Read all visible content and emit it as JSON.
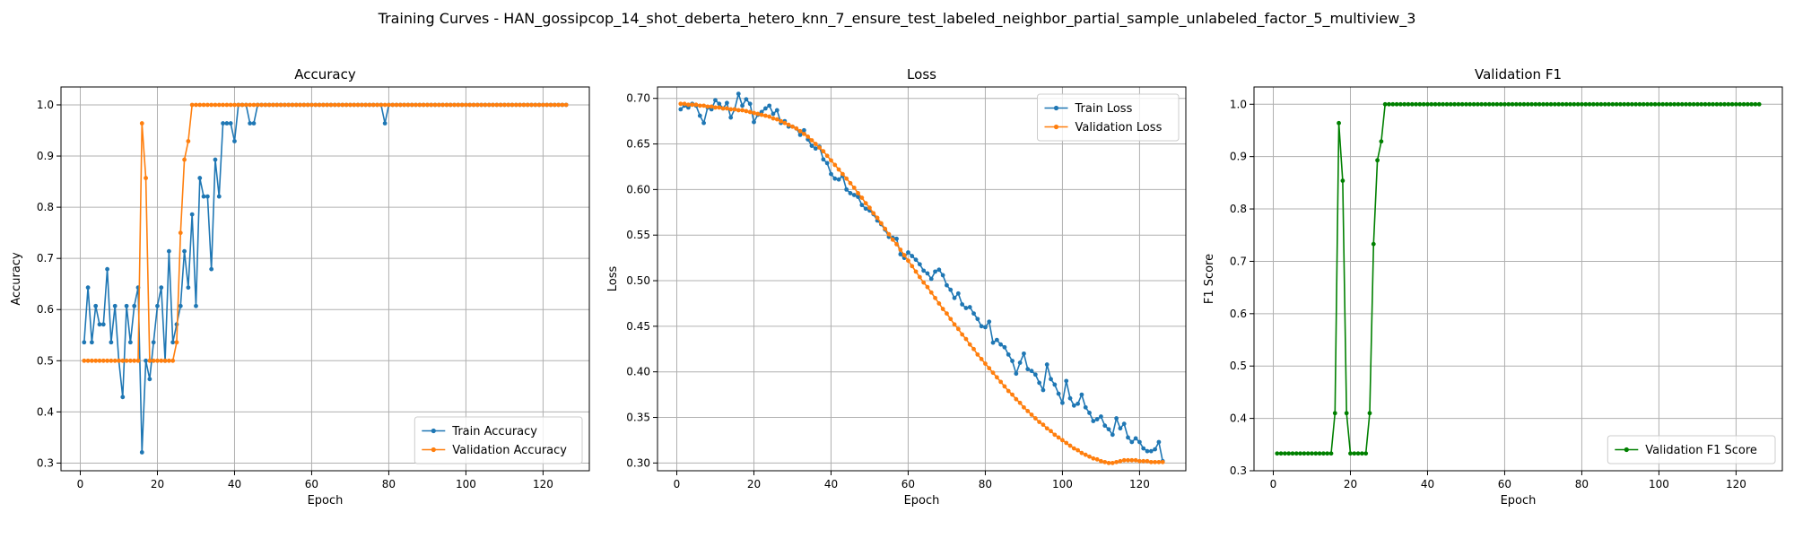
{
  "figure": {
    "suptitle": "Training Curves - HAN_gossipcop_14_shot_deberta_hetero_knn_7_ensure_test_labeled_neighbor_partial_sample_unlabeled_factor_5_multiview_3"
  },
  "chart_data": [
    {
      "type": "line",
      "title": "Accuracy",
      "xlabel": "Epoch",
      "ylabel": "Accuracy",
      "xlim": [
        -5,
        132
      ],
      "ylim": [
        0.285,
        1.035
      ],
      "xticks": [
        0,
        20,
        40,
        60,
        80,
        100,
        120
      ],
      "yticks": [
        0.3,
        0.4,
        0.5,
        0.6,
        0.7,
        0.8,
        0.9,
        1.0
      ],
      "ytick_labels": [
        "0.3",
        "0.4",
        "0.5",
        "0.6",
        "0.7",
        "0.8",
        "0.9",
        "1.0"
      ],
      "grid": true,
      "legend_position": "lower-right",
      "series": [
        {
          "name": "Train Accuracy",
          "color": "#1f77b4",
          "x_start": 1,
          "values": [
            0.536,
            0.643,
            0.536,
            0.607,
            0.571,
            0.571,
            0.679,
            0.536,
            0.607,
            0.5,
            0.429,
            0.607,
            0.536,
            0.607,
            0.643,
            0.321,
            0.5,
            0.464,
            0.536,
            0.607,
            0.643,
            0.5,
            0.714,
            0.536,
            0.571,
            0.607,
            0.714,
            0.643,
            0.786,
            0.607,
            0.857,
            0.821,
            0.821,
            0.679,
            0.893,
            0.821,
            0.964,
            0.964,
            0.964,
            0.929,
            1.0,
            1.0,
            1.0,
            0.964,
            0.964,
            1.0,
            1.0,
            1.0,
            1.0,
            1.0,
            1.0,
            1.0,
            1.0,
            1.0,
            1.0,
            1.0,
            1.0,
            1.0,
            1.0,
            1.0,
            1.0,
            1.0,
            1.0,
            1.0,
            1.0,
            1.0,
            1.0,
            1.0,
            1.0,
            1.0,
            1.0,
            1.0,
            1.0,
            1.0,
            1.0,
            1.0,
            1.0,
            1.0,
            0.964,
            1.0,
            1.0,
            1.0,
            1.0,
            1.0,
            1.0,
            1.0,
            1.0,
            1.0,
            1.0,
            1.0,
            1.0,
            1.0,
            1.0,
            1.0,
            1.0,
            1.0,
            1.0,
            1.0,
            1.0,
            1.0,
            1.0,
            1.0,
            1.0,
            1.0,
            1.0,
            1.0,
            1.0,
            1.0,
            1.0,
            1.0,
            1.0,
            1.0,
            1.0,
            1.0,
            1.0,
            1.0,
            1.0,
            1.0,
            1.0,
            1.0,
            1.0,
            1.0,
            1.0,
            1.0,
            1.0,
            1.0
          ]
        },
        {
          "name": "Validation Accuracy",
          "color": "#ff7f0e",
          "x_start": 1,
          "values": [
            0.5,
            0.5,
            0.5,
            0.5,
            0.5,
            0.5,
            0.5,
            0.5,
            0.5,
            0.5,
            0.5,
            0.5,
            0.5,
            0.5,
            0.5,
            0.964,
            0.857,
            0.5,
            0.5,
            0.5,
            0.5,
            0.5,
            0.5,
            0.5,
            0.536,
            0.75,
            0.893,
            0.929,
            1.0,
            1.0,
            1.0,
            1.0,
            1.0,
            1.0,
            1.0,
            1.0,
            1.0,
            1.0,
            1.0,
            1.0,
            1.0,
            1.0,
            1.0,
            1.0,
            1.0,
            1.0,
            1.0,
            1.0,
            1.0,
            1.0,
            1.0,
            1.0,
            1.0,
            1.0,
            1.0,
            1.0,
            1.0,
            1.0,
            1.0,
            1.0,
            1.0,
            1.0,
            1.0,
            1.0,
            1.0,
            1.0,
            1.0,
            1.0,
            1.0,
            1.0,
            1.0,
            1.0,
            1.0,
            1.0,
            1.0,
            1.0,
            1.0,
            1.0,
            1.0,
            1.0,
            1.0,
            1.0,
            1.0,
            1.0,
            1.0,
            1.0,
            1.0,
            1.0,
            1.0,
            1.0,
            1.0,
            1.0,
            1.0,
            1.0,
            1.0,
            1.0,
            1.0,
            1.0,
            1.0,
            1.0,
            1.0,
            1.0,
            1.0,
            1.0,
            1.0,
            1.0,
            1.0,
            1.0,
            1.0,
            1.0,
            1.0,
            1.0,
            1.0,
            1.0,
            1.0,
            1.0,
            1.0,
            1.0,
            1.0,
            1.0,
            1.0,
            1.0,
            1.0,
            1.0,
            1.0,
            1.0
          ]
        }
      ]
    },
    {
      "type": "line",
      "title": "Loss",
      "xlabel": "Epoch",
      "ylabel": "Loss",
      "xlim": [
        -5,
        132
      ],
      "ylim": [
        0.2915,
        0.7125
      ],
      "xticks": [
        0,
        20,
        40,
        60,
        80,
        100,
        120
      ],
      "yticks": [
        0.3,
        0.35,
        0.4,
        0.45,
        0.5,
        0.55,
        0.6,
        0.65,
        0.7
      ],
      "ytick_labels": [
        "0.30",
        "0.35",
        "0.40",
        "0.45",
        "0.50",
        "0.55",
        "0.60",
        "0.65",
        "0.70"
      ],
      "grid": true,
      "legend_position": "upper-right",
      "series": [
        {
          "name": "Train Loss",
          "color": "#1f77b4",
          "x_start": 1,
          "values": [
            0.688,
            0.692,
            0.69,
            0.694,
            0.692,
            0.681,
            0.673,
            0.69,
            0.688,
            0.698,
            0.694,
            0.689,
            0.695,
            0.679,
            0.688,
            0.705,
            0.692,
            0.699,
            0.694,
            0.674,
            0.682,
            0.685,
            0.689,
            0.692,
            0.683,
            0.687,
            0.673,
            0.675,
            0.669,
            0.669,
            0.667,
            0.66,
            0.665,
            0.655,
            0.648,
            0.645,
            0.647,
            0.633,
            0.629,
            0.617,
            0.612,
            0.611,
            0.615,
            0.6,
            0.596,
            0.594,
            0.592,
            0.583,
            0.579,
            0.577,
            0.573,
            0.566,
            0.562,
            0.556,
            0.548,
            0.547,
            0.546,
            0.529,
            0.525,
            0.531,
            0.527,
            0.523,
            0.518,
            0.511,
            0.508,
            0.502,
            0.51,
            0.512,
            0.506,
            0.495,
            0.49,
            0.481,
            0.486,
            0.474,
            0.47,
            0.471,
            0.464,
            0.458,
            0.45,
            0.449,
            0.455,
            0.432,
            0.435,
            0.43,
            0.427,
            0.419,
            0.412,
            0.398,
            0.41,
            0.42,
            0.403,
            0.401,
            0.397,
            0.388,
            0.38,
            0.408,
            0.392,
            0.386,
            0.376,
            0.366,
            0.39,
            0.371,
            0.363,
            0.365,
            0.375,
            0.361,
            0.355,
            0.346,
            0.348,
            0.351,
            0.341,
            0.337,
            0.331,
            0.349,
            0.338,
            0.343,
            0.328,
            0.323,
            0.327,
            0.323,
            0.316,
            0.313,
            0.313,
            0.315,
            0.323,
            0.302
          ]
        },
        {
          "name": "Validation Loss",
          "color": "#ff7f0e",
          "x_start": 1,
          "values": [
            0.694,
            0.694,
            0.693,
            0.693,
            0.693,
            0.692,
            0.692,
            0.691,
            0.691,
            0.69,
            0.69,
            0.689,
            0.689,
            0.688,
            0.688,
            0.687,
            0.687,
            0.686,
            0.685,
            0.684,
            0.683,
            0.682,
            0.681,
            0.68,
            0.678,
            0.677,
            0.675,
            0.673,
            0.671,
            0.669,
            0.667,
            0.664,
            0.661,
            0.658,
            0.654,
            0.65,
            0.646,
            0.642,
            0.637,
            0.632,
            0.627,
            0.622,
            0.617,
            0.612,
            0.607,
            0.602,
            0.596,
            0.591,
            0.585,
            0.58,
            0.574,
            0.569,
            0.563,
            0.557,
            0.551,
            0.545,
            0.54,
            0.534,
            0.528,
            0.522,
            0.516,
            0.51,
            0.504,
            0.498,
            0.493,
            0.487,
            0.481,
            0.475,
            0.469,
            0.464,
            0.458,
            0.452,
            0.447,
            0.441,
            0.436,
            0.43,
            0.425,
            0.419,
            0.414,
            0.409,
            0.404,
            0.399,
            0.394,
            0.389,
            0.384,
            0.379,
            0.375,
            0.37,
            0.366,
            0.361,
            0.357,
            0.353,
            0.349,
            0.345,
            0.342,
            0.338,
            0.335,
            0.331,
            0.328,
            0.325,
            0.322,
            0.319,
            0.316,
            0.314,
            0.311,
            0.309,
            0.307,
            0.305,
            0.304,
            0.302,
            0.301,
            0.3,
            0.3,
            0.301,
            0.302,
            0.303,
            0.303,
            0.303,
            0.303,
            0.302,
            0.302,
            0.302,
            0.301,
            0.301,
            0.301,
            0.301
          ]
        }
      ]
    },
    {
      "type": "line",
      "title": "Validation F1",
      "xlabel": "Epoch",
      "ylabel": "F1 Score",
      "xlim": [
        -5,
        132
      ],
      "ylim": [
        0.3,
        1.033
      ],
      "xticks": [
        0,
        20,
        40,
        60,
        80,
        100,
        120
      ],
      "yticks": [
        0.3,
        0.4,
        0.5,
        0.6,
        0.7,
        0.8,
        0.9,
        1.0
      ],
      "ytick_labels": [
        "0.3",
        "0.4",
        "0.5",
        "0.6",
        "0.7",
        "0.8",
        "0.9",
        "1.0"
      ],
      "grid": true,
      "legend_position": "lower-right",
      "series": [
        {
          "name": "Validation F1 Score",
          "color": "#008000",
          "x_start": 1,
          "values": [
            0.333,
            0.333,
            0.333,
            0.333,
            0.333,
            0.333,
            0.333,
            0.333,
            0.333,
            0.333,
            0.333,
            0.333,
            0.333,
            0.333,
            0.333,
            0.41,
            0.964,
            0.854,
            0.41,
            0.333,
            0.333,
            0.333,
            0.333,
            0.333,
            0.41,
            0.733,
            0.893,
            0.929,
            1.0,
            1.0,
            1.0,
            1.0,
            1.0,
            1.0,
            1.0,
            1.0,
            1.0,
            1.0,
            1.0,
            1.0,
            1.0,
            1.0,
            1.0,
            1.0,
            1.0,
            1.0,
            1.0,
            1.0,
            1.0,
            1.0,
            1.0,
            1.0,
            1.0,
            1.0,
            1.0,
            1.0,
            1.0,
            1.0,
            1.0,
            1.0,
            1.0,
            1.0,
            1.0,
            1.0,
            1.0,
            1.0,
            1.0,
            1.0,
            1.0,
            1.0,
            1.0,
            1.0,
            1.0,
            1.0,
            1.0,
            1.0,
            1.0,
            1.0,
            1.0,
            1.0,
            1.0,
            1.0,
            1.0,
            1.0,
            1.0,
            1.0,
            1.0,
            1.0,
            1.0,
            1.0,
            1.0,
            1.0,
            1.0,
            1.0,
            1.0,
            1.0,
            1.0,
            1.0,
            1.0,
            1.0,
            1.0,
            1.0,
            1.0,
            1.0,
            1.0,
            1.0,
            1.0,
            1.0,
            1.0,
            1.0,
            1.0,
            1.0,
            1.0,
            1.0,
            1.0,
            1.0,
            1.0,
            1.0,
            1.0,
            1.0,
            1.0,
            1.0,
            1.0,
            1.0,
            1.0,
            1.0
          ]
        }
      ]
    }
  ]
}
